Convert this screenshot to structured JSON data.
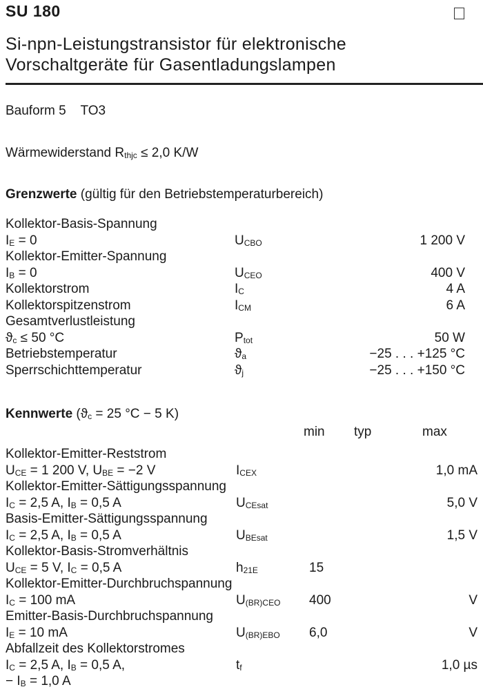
{
  "header": {
    "title": "SU 180",
    "subtitle_line1": "Si-npn-Leistungstransistor für elektronische",
    "subtitle_line2": "Vorschaltgeräte für Gasentladungslampen"
  },
  "package": {
    "label": "Bauform 5",
    "type": "TO3"
  },
  "thermal": {
    "label": "Wärmewiderstand",
    "symbol": "R",
    "symbol_sub": "thjc",
    "relation": "≤ 2,0 K/W"
  },
  "limits": {
    "heading": "Grenzwerte",
    "note": "(gültig für den Betriebstemperaturbereich)",
    "rows": [
      {
        "name": "Kollektor-Basis-Spannung",
        "cond": [
          {
            "t": "I"
          },
          {
            "s": "E"
          },
          {
            "t": " = 0"
          }
        ],
        "sym": "U",
        "sub": "CBO",
        "value": "1 200 V"
      },
      {
        "name": "Kollektor-Emitter-Spannung",
        "cond": [
          {
            "t": "I"
          },
          {
            "s": "B"
          },
          {
            "t": " = 0"
          }
        ],
        "sym": "U",
        "sub": "CEO",
        "value": "400 V"
      },
      {
        "name": "Kollektorstrom",
        "sym": "I",
        "sub": "C",
        "value": "4 A"
      },
      {
        "name": "Kollektorspitzenstrom",
        "sym": "I",
        "sub": "CM",
        "value": "6 A"
      },
      {
        "name": "Gesamtverlustleistung",
        "cond": [
          {
            "t": "ϑ"
          },
          {
            "s": "c"
          },
          {
            "t": "  ≤  50 °C"
          }
        ],
        "sym": "P",
        "sub": "tot",
        "value": "50 W"
      },
      {
        "name": "Betriebstemperatur",
        "sym": "ϑ",
        "sub": "a",
        "value": "−25 . . . +125 °C"
      },
      {
        "name": "Sperrschichttemperatur",
        "sym": "ϑ",
        "sub": "j",
        "value": "−25 . . . +150 °C"
      }
    ]
  },
  "characteristics": {
    "heading": "Kennwerte",
    "condition": [
      {
        "t": "(ϑ"
      },
      {
        "s": "c"
      },
      {
        "t": " = 25 °C − 5 K)"
      }
    ],
    "columns": {
      "min": "min",
      "typ": "typ",
      "max": "max"
    },
    "rows": [
      {
        "name": "Kollektor-Emitter-Reststrom",
        "cond": [
          {
            "t": "U"
          },
          {
            "s": "CE"
          },
          {
            "t": " = 1 200 V, U"
          },
          {
            "s": "BE"
          },
          {
            "t": " = −2 V"
          }
        ],
        "sym": "I",
        "sub": "CEX",
        "min": "",
        "typ": "",
        "max": "1,0 mA"
      },
      {
        "name": "Kollektor-Emitter-Sättigungsspannung",
        "cond": [
          {
            "t": "I"
          },
          {
            "s": "C"
          },
          {
            "t": " = 2,5 A, I"
          },
          {
            "s": "B"
          },
          {
            "t": " = 0,5 A"
          }
        ],
        "sym": "U",
        "sub": "CEsat",
        "min": "",
        "typ": "",
        "max": "5,0 V"
      },
      {
        "name": "Basis-Emitter-Sättigungsspannung",
        "cond": [
          {
            "t": "I"
          },
          {
            "s": "C"
          },
          {
            "t": " = 2,5 A, I"
          },
          {
            "s": "B"
          },
          {
            "t": " = 0,5 A"
          }
        ],
        "sym": "U",
        "sub": "BEsat",
        "min": "",
        "typ": "",
        "max": "1,5 V"
      },
      {
        "name": "Kollektor-Basis-Stromverhältnis",
        "cond": [
          {
            "t": "U"
          },
          {
            "s": "CE"
          },
          {
            "t": " = 5 V, I"
          },
          {
            "s": "C"
          },
          {
            "t": " = 0,5 A"
          }
        ],
        "sym": "h",
        "sub": "21E",
        "min": "15",
        "typ": "",
        "max": ""
      },
      {
        "name": "Kollektor-Emitter-Durchbruchspannung",
        "cond": [
          {
            "t": "I"
          },
          {
            "s": "C"
          },
          {
            "t": " = 100 mA"
          }
        ],
        "sym": "U",
        "sub": "(BR)CEO",
        "min": "400",
        "typ": "",
        "max": "V"
      },
      {
        "name": "Emitter-Basis-Durchbruchspannung",
        "cond": [
          {
            "t": "I"
          },
          {
            "s": "E"
          },
          {
            "t": " = 10 mA"
          }
        ],
        "sym": "U",
        "sub": "(BR)EBO",
        "min": "6,0",
        "typ": "",
        "max": "V"
      },
      {
        "name": "Abfallzeit des Kollektorstromes",
        "cond": [
          {
            "t": "I"
          },
          {
            "s": "C"
          },
          {
            "t": " = 2,5 A, I"
          },
          {
            "s": "B"
          },
          {
            "t": " = 0,5 A,"
          }
        ],
        "cond2": [
          {
            "t": "− I"
          },
          {
            "s": "B"
          },
          {
            "t": " = 1,0 A"
          }
        ],
        "sym": "t",
        "sub": "f",
        "min": "",
        "typ": "",
        "max": "1,0 µs"
      }
    ]
  }
}
